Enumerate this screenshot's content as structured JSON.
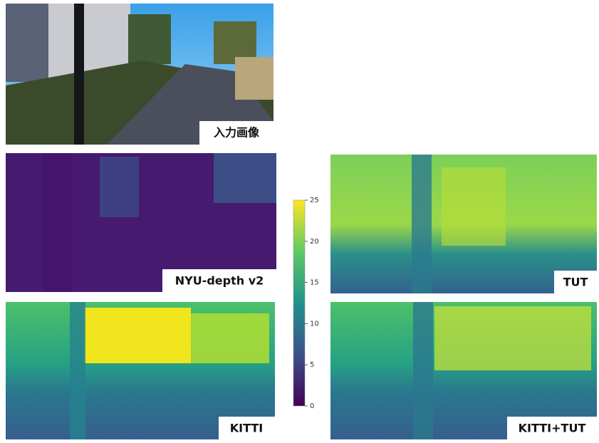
{
  "panels": {
    "input": "入力画像",
    "nyu": "NYU-depth v2",
    "tut": "TUT",
    "kitti": "KITTI",
    "kitti_tut": "KITTI+TUT"
  },
  "colorbar": {
    "lim": [
      0,
      25
    ],
    "ticks": [
      0,
      5,
      10,
      15,
      20,
      25
    ]
  }
}
